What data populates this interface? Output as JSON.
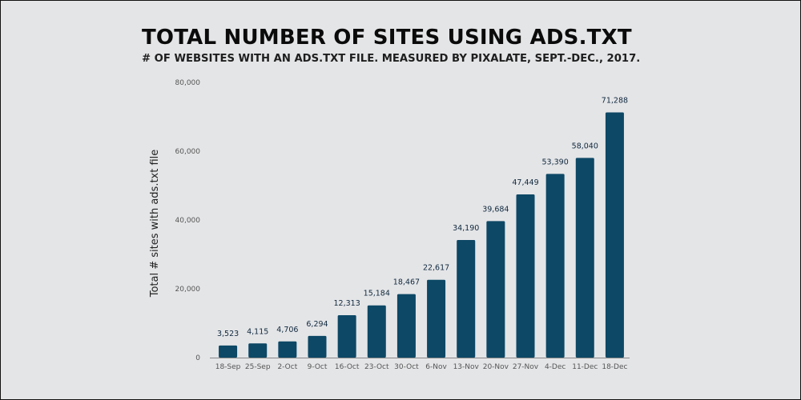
{
  "chart_data": {
    "type": "bar",
    "title": "TOTAL NUMBER OF SITES USING ADS.TXT",
    "subtitle": "# OF WEBSITES WITH AN ADS.TXT FILE. MEASURED BY PIXALATE, SEPT.-DEC., 2017.",
    "xlabel": "",
    "ylabel": "Total # sites with ads.txt file",
    "ylim": [
      0,
      80000
    ],
    "yticks": [
      0,
      20000,
      40000,
      60000,
      80000
    ],
    "ytick_labels": [
      "0",
      "20,000",
      "40,000",
      "60,000",
      "80,000"
    ],
    "categories": [
      "18-Sep",
      "25-Sep",
      "2-Oct",
      "9-Oct",
      "16-Oct",
      "23-Oct",
      "30-Oct",
      "6-Nov",
      "13-Nov",
      "20-Nov",
      "27-Nov",
      "4-Dec",
      "11-Dec",
      "18-Dec"
    ],
    "values": [
      3523,
      4115,
      4706,
      6294,
      12313,
      15184,
      18467,
      22617,
      34190,
      39684,
      47449,
      53390,
      58040,
      71288
    ],
    "value_labels": [
      "3,523",
      "4,115",
      "4,706",
      "6,294",
      "12,313",
      "15,184",
      "18,467",
      "22,617",
      "34,190",
      "39,684",
      "47,449",
      "53,390",
      "58,040",
      "71,288"
    ],
    "grid": false,
    "legend": "none",
    "colors": {
      "bar": "#0d4866",
      "background": "#e4e5e7",
      "baseline": "#888888"
    }
  }
}
